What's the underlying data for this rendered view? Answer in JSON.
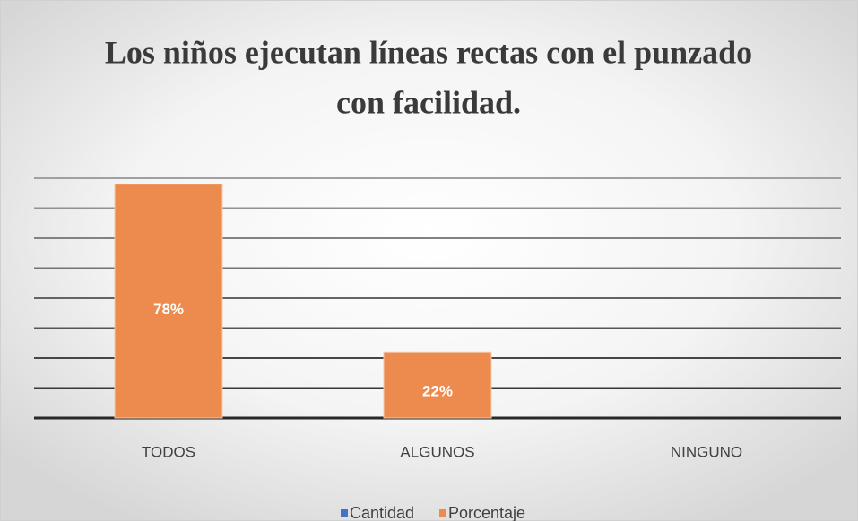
{
  "chart_data": {
    "type": "bar",
    "title": [
      "Los niños ejecutan líneas rectas con el punzado",
      "con facilidad."
    ],
    "categories": [
      "TODOS",
      "ALGUNOS",
      "NINGUNO"
    ],
    "series": [
      {
        "name": "Cantidad",
        "color": "#4472c4",
        "values": [
          null,
          null,
          null
        ]
      },
      {
        "name": "Porcentaje",
        "color": "#ed8b4f",
        "values": [
          78,
          22,
          0
        ],
        "value_labels": [
          "78%",
          "22%",
          null
        ]
      }
    ],
    "ylim": [
      0,
      80
    ],
    "yticks": [
      0,
      10,
      20,
      30,
      40,
      50,
      60,
      70,
      80
    ],
    "grid": true,
    "legend": "bottom"
  }
}
